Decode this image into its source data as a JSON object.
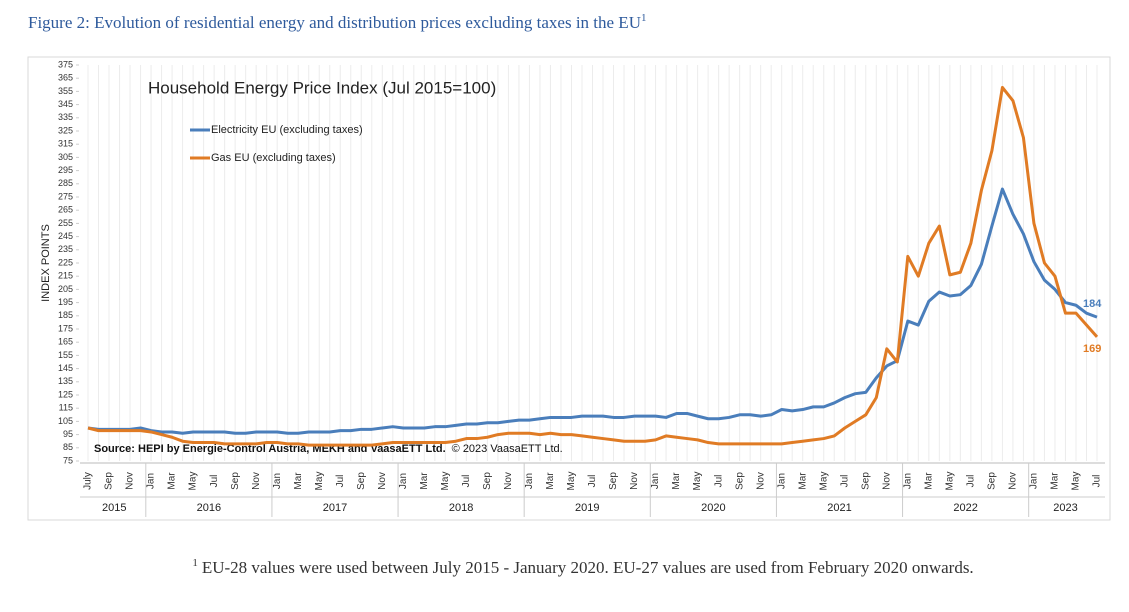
{
  "figure_title": "Figure 2: Evolution of residential energy and distribution prices excluding taxes in the EU",
  "title_note_mark": "1",
  "note_mark": "1",
  "footnote": "EU-28 values were used between July 2015 - January 2020. EU-27 values are used from February 2020 onwards.",
  "chart_data": {
    "type": "line",
    "title": "Household Energy Price Index (Jul 2015=100)",
    "y_label": "INDEX POINTS",
    "source": "Source: HEPI by Energie-Control Austria, MEKH and VaasaETT Ltd.",
    "copyright": "© 2023 VaasaETT Ltd.",
    "legend": "upper left",
    "x_grid": true,
    "categories": [
      "July",
      null,
      "Sep",
      null,
      "Nov",
      null,
      "Jan",
      null,
      "Mar",
      null,
      "May",
      null,
      "Jul",
      null,
      "Sep",
      null,
      "Nov",
      null,
      "Jan",
      null,
      "Mar",
      null,
      "May",
      null,
      "Jul",
      null,
      "Sep",
      null,
      "Nov",
      null,
      "Jan",
      null,
      "Mar",
      null,
      "May",
      null,
      "Jul",
      null,
      "Sep",
      null,
      "Nov",
      null,
      "Jan",
      null,
      "Mar",
      null,
      "May",
      null,
      "Jul",
      null,
      "Sep",
      null,
      "Nov",
      null,
      "Jan",
      null,
      "Mar",
      null,
      "May",
      null,
      "Jul",
      null,
      "Sep",
      null,
      "Nov",
      null,
      "Jan",
      null,
      "Mar",
      null,
      "May",
      null,
      "Jul",
      null,
      "Sep",
      null,
      "Nov",
      null,
      "Jan",
      null,
      "Mar",
      null,
      "May",
      null,
      "Jul",
      null,
      "Sep",
      null,
      "Nov",
      null,
      "Jan",
      null,
      "Mar",
      null,
      "May",
      null,
      "Jul"
    ],
    "years": [
      "2015",
      "2016",
      "2017",
      "2018",
      "2019",
      "2020",
      "2021",
      "2022",
      "2023"
    ],
    "ylim": [
      75,
      375
    ],
    "yticks": [
      75,
      85,
      95,
      105,
      115,
      125,
      135,
      145,
      155,
      165,
      175,
      185,
      195,
      205,
      215,
      225,
      235,
      245,
      255,
      265,
      275,
      285,
      295,
      305,
      315,
      325,
      335,
      345,
      355,
      365,
      375
    ],
    "series": [
      {
        "name": "Electricity EU (excluding taxes)",
        "color": "#4a7ebb",
        "values": [
          100,
          99,
          99,
          99,
          99,
          100,
          98,
          97,
          97,
          96,
          97,
          97,
          97,
          97,
          96,
          96,
          97,
          97,
          97,
          96,
          96,
          97,
          97,
          97,
          98,
          98,
          99,
          99,
          100,
          101,
          100,
          100,
          100,
          101,
          101,
          102,
          103,
          103,
          104,
          104,
          105,
          106,
          106,
          107,
          108,
          108,
          108,
          109,
          109,
          109,
          108,
          108,
          109,
          109,
          109,
          108,
          111,
          111,
          109,
          107,
          107,
          108,
          110,
          110,
          109,
          110,
          114,
          113,
          114,
          116,
          116,
          119,
          123,
          126,
          127,
          138,
          147,
          151,
          181,
          178,
          196,
          203,
          200,
          201,
          208,
          224,
          253,
          281,
          262,
          247,
          226,
          212,
          205,
          195,
          193,
          187,
          184
        ],
        "value_labels": [
          null,
          null,
          null,
          null,
          null,
          null,
          null,
          null,
          null,
          null,
          null,
          null,
          null,
          null,
          null,
          null,
          null,
          null,
          null,
          null,
          null,
          null,
          null,
          null,
          null,
          null,
          null,
          null,
          null,
          null,
          null,
          null,
          null,
          null,
          null,
          null,
          null,
          null,
          null,
          null,
          null,
          null,
          null,
          null,
          null,
          null,
          null,
          null,
          null,
          null,
          null,
          null,
          null,
          null,
          null,
          null,
          null,
          null,
          null,
          null,
          null,
          null,
          null,
          null,
          null,
          null,
          null,
          null,
          null,
          null,
          null,
          null,
          null,
          null,
          null,
          null,
          null,
          null,
          null,
          null,
          null,
          null,
          null,
          null,
          null,
          null,
          null,
          null,
          null,
          null,
          null,
          null,
          null,
          null,
          null,
          null,
          "184"
        ]
      },
      {
        "name": "Gas EU (excluding taxes)",
        "color": "#e07b24",
        "values": [
          100,
          98,
          98,
          98,
          98,
          98,
          97,
          95,
          93,
          90,
          89,
          89,
          89,
          88,
          88,
          88,
          88,
          89,
          89,
          88,
          88,
          87,
          87,
          87,
          87,
          87,
          87,
          87,
          88,
          89,
          89,
          89,
          89,
          89,
          89,
          90,
          92,
          92,
          93,
          95,
          96,
          96,
          96,
          95,
          96,
          95,
          95,
          94,
          93,
          92,
          91,
          90,
          90,
          90,
          91,
          94,
          93,
          92,
          91,
          89,
          88,
          88,
          88,
          88,
          88,
          88,
          88,
          89,
          90,
          91,
          92,
          94,
          100,
          105,
          110,
          123,
          160,
          150,
          230,
          215,
          240,
          253,
          216,
          218,
          240,
          280,
          310,
          358,
          348,
          320,
          255,
          225,
          215,
          187,
          187,
          178,
          169
        ],
        "value_labels": [
          null,
          null,
          null,
          null,
          null,
          null,
          null,
          null,
          null,
          null,
          null,
          null,
          null,
          null,
          null,
          null,
          null,
          null,
          null,
          null,
          null,
          null,
          null,
          null,
          null,
          null,
          null,
          null,
          null,
          null,
          null,
          null,
          null,
          null,
          null,
          null,
          null,
          null,
          null,
          null,
          null,
          null,
          null,
          null,
          null,
          null,
          null,
          null,
          null,
          null,
          null,
          null,
          null,
          null,
          null,
          null,
          null,
          null,
          null,
          null,
          null,
          null,
          null,
          null,
          null,
          null,
          null,
          null,
          null,
          null,
          null,
          null,
          null,
          null,
          null,
          null,
          null,
          null,
          null,
          null,
          null,
          null,
          null,
          null,
          null,
          null,
          null,
          null,
          null,
          null,
          null,
          null,
          null,
          null,
          null,
          null,
          "169"
        ]
      }
    ]
  }
}
